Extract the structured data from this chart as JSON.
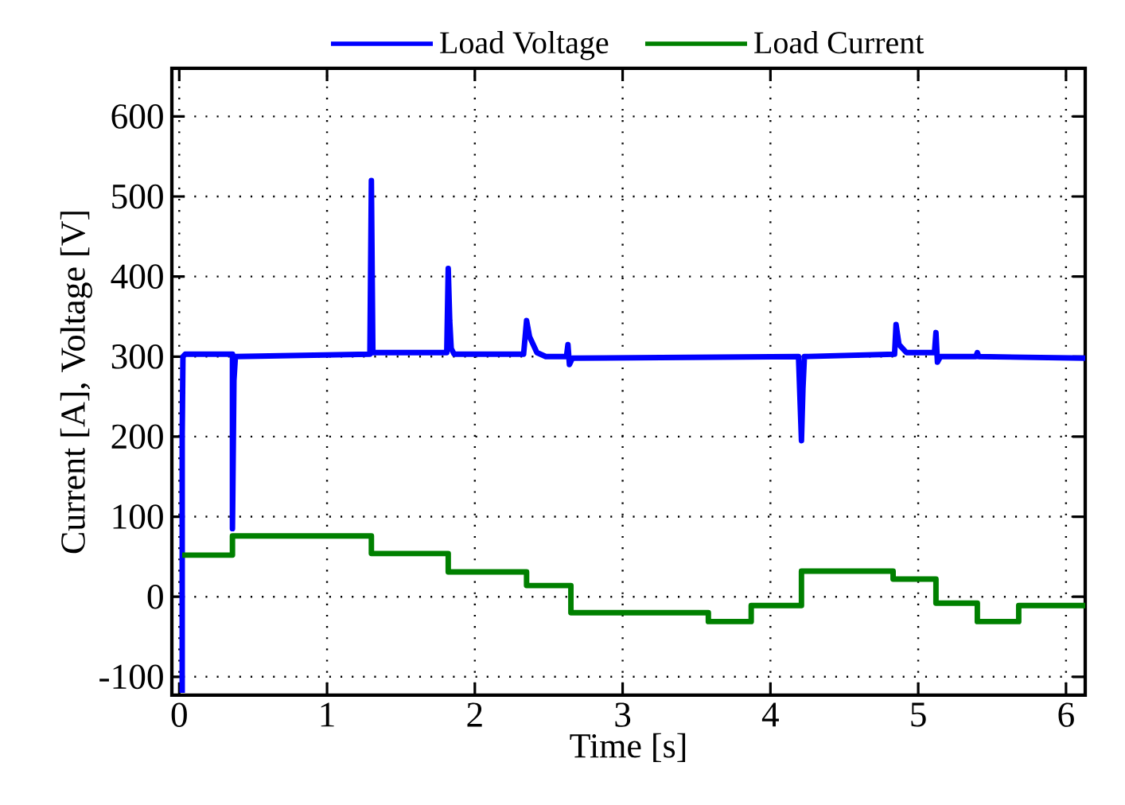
{
  "chart_data": {
    "type": "line",
    "xlabel": "Time [s]",
    "ylabel": "Current [A], Voltage [V]",
    "xlim": [
      -0.05,
      6.13
    ],
    "xticks": [
      0,
      1,
      2,
      3,
      4,
      5,
      6
    ],
    "ylim": [
      -123,
      660
    ],
    "yticks": [
      -100,
      0,
      100,
      200,
      300,
      400,
      500,
      600
    ],
    "grid": true,
    "legend": "top",
    "marker": "none",
    "line_style": "solid",
    "series": [
      {
        "name": "Load Voltage",
        "color": "#0000ff",
        "x": [
          0.02,
          0.02,
          0.025,
          0.04,
          0.36,
          0.36,
          0.37,
          0.38,
          1.29,
          1.3,
          1.31,
          1.32,
          1.81,
          1.82,
          1.83,
          1.84,
          1.86,
          2.33,
          2.35,
          2.37,
          2.42,
          2.48,
          2.62,
          2.63,
          2.64,
          2.66,
          4.19,
          4.21,
          4.22,
          4.23,
          4.84,
          4.85,
          4.87,
          4.92,
          5.11,
          5.12,
          5.13,
          5.15,
          5.39,
          5.4,
          5.41,
          6.13
        ],
        "values": [
          -120,
          200,
          300,
          303,
          303,
          85,
          270,
          300,
          303,
          520,
          305,
          305,
          305,
          410,
          345,
          310,
          303,
          303,
          345,
          325,
          305,
          300,
          300,
          315,
          290,
          298,
          300,
          195,
          260,
          300,
          303,
          340,
          315,
          305,
          305,
          330,
          293,
          300,
          300,
          305,
          300,
          298
        ]
      },
      {
        "name": "Load Current",
        "color": "#008000",
        "x": [
          0.02,
          0.36,
          0.36,
          1.3,
          1.3,
          1.82,
          1.82,
          2.35,
          2.35,
          2.65,
          2.65,
          3.58,
          3.58,
          3.87,
          3.87,
          4.21,
          4.21,
          4.83,
          4.83,
          5.12,
          5.12,
          5.4,
          5.4,
          5.68,
          5.68,
          6.13
        ],
        "values": [
          52,
          52,
          76,
          76,
          54,
          54,
          31,
          31,
          14,
          14,
          -20,
          -20,
          -31,
          -31,
          -11,
          -11,
          32,
          32,
          22,
          22,
          -8,
          -8,
          -31,
          -31,
          -11,
          -11
        ]
      }
    ]
  }
}
